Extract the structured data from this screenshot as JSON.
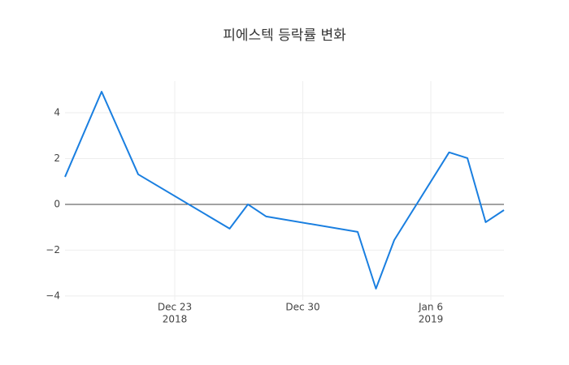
{
  "chart_data": {
    "type": "line",
    "title": "피에스텍 등락률 변화",
    "x": [
      "2018-12-17",
      "2018-12-19",
      "2018-12-21",
      "2018-12-26",
      "2018-12-27",
      "2018-12-28",
      "2019-01-02",
      "2019-01-03",
      "2019-01-04",
      "2019-01-07",
      "2019-01-08",
      "2019-01-09",
      "2019-01-10"
    ],
    "series": [
      {
        "color": "#1a7fe0",
        "values": [
          1.2,
          4.92,
          1.31,
          -1.06,
          0,
          -0.53,
          -1.2,
          -3.68,
          -1.56,
          2.27,
          2.02,
          -0.78,
          -0.25
        ]
      }
    ],
    "xlim": [
      "2018-12-17",
      "2019-01-10"
    ],
    "xticks": [
      {
        "value": "2018-12-23",
        "label": "Dec 23",
        "sublabel": "2018"
      },
      {
        "value": "2018-12-30",
        "label": "Dec 30"
      },
      {
        "value": "2019-01-06",
        "label": "Jan 6",
        "sublabel": "2019"
      }
    ],
    "ylim": [
      -4.18,
      5.38
    ],
    "yticks": [
      {
        "value": -4,
        "label": "−4"
      },
      {
        "value": -2,
        "label": "−2"
      },
      0,
      2,
      4
    ],
    "grid": true
  }
}
